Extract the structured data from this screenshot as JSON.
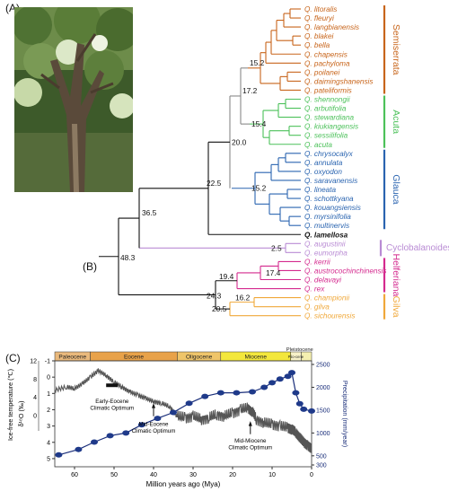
{
  "panels": {
    "a": "(A)",
    "b": "(B)",
    "c": "(C)"
  },
  "tree": {
    "clades": [
      {
        "name": "Semiserrata",
        "color": "#c8651b",
        "species": [
          "Q. litoralis",
          "Q. fleuryi",
          "Q. langbianensis",
          "Q. blakei",
          "Q. bella",
          "Q. chapensis",
          "Q. pachyloma",
          "Q. poilanei",
          "Q. daimingshanensis",
          "Q. pateliformis"
        ]
      },
      {
        "name": "Acuta",
        "color": "#4cc15a",
        "species": [
          "Q. shennongii",
          "Q. arbutifolia",
          "Q. stewardiana",
          "Q. kiukiangensis",
          "Q. sessilifolia",
          "Q. acuta"
        ]
      },
      {
        "name": "Glauca",
        "color": "#2a64b0",
        "species": [
          "Q. chrysocalyx",
          "Q. annulata",
          "Q. oxyodon",
          "Q. saravanensis",
          "Q. lineata",
          "Q. schottkyana",
          "Q. kouangsiensis",
          "Q. myrsinifolia",
          "Q. multinervis"
        ]
      },
      {
        "name": "",
        "color": "#111111",
        "species": [
          "Q. lamellosa"
        ]
      },
      {
        "name": "Cyclobalanoides",
        "color": "#b98bd4",
        "species": [
          "Q. augustinii",
          "Q. eumorpha"
        ]
      },
      {
        "name": "Helferiana",
        "color": "#d42a8e",
        "species": [
          "Q. kerrii",
          "Q. austrocochinchinensis",
          "Q. delavayi",
          "Q. rex"
        ]
      },
      {
        "name": "Gilva",
        "color": "#f0a83a",
        "species": [
          "Q. championii",
          "Q. gilva",
          "Q. sichourensis"
        ]
      }
    ],
    "node_ages": {
      "root": "48.3",
      "n365": "36.5",
      "n225": "22.5",
      "n200": "20.0",
      "n172": "17.2",
      "n152a": "15.2",
      "n154": "15.4",
      "n152b": "15.2",
      "n25": "2.5",
      "n243": "24.3",
      "n194": "19.4",
      "n174": "17.4",
      "n162": "16.2",
      "n205": "20.5"
    }
  },
  "chart_data": {
    "type": "line",
    "epochs": [
      "Paleocene",
      "Eocene",
      "Oligocene",
      "Miocene",
      "Pleistocene",
      "Plio-cene"
    ],
    "epoch_colors": [
      "#e9b97c",
      "#e8a24a",
      "#efc56a",
      "#f3e73c",
      "#f5f0b0",
      "#f7f1c8"
    ],
    "x_ticks": [
      "60",
      "50",
      "40",
      "30",
      "20",
      "10",
      "0"
    ],
    "xlabel": "Million years ago (Mya)",
    "xlim": [
      65,
      0
    ],
    "y_left_ticks": [
      "-1",
      "0",
      "1",
      "2",
      "3",
      "4",
      "5"
    ],
    "y_left_ticks_t": [
      "12",
      "8",
      "4",
      "0"
    ],
    "ylabel_left_a": "Ice-free temperature (℃)",
    "ylabel_left_b": "δ¹⁸O (‰)",
    "ylim_left": [
      -1,
      5.5
    ],
    "y_right_ticks": [
      "2500",
      "2000",
      "1500",
      "1000",
      "500",
      "300"
    ],
    "ylabel_right": "Precipitation (mm/year)",
    "annotations": [
      "Early-Eocene Climatic Optimum",
      "Mid-Eocene Climatic Optimum",
      "Mid-Miocene Climatic Optimum"
    ],
    "series": [
      {
        "name": "d18O",
        "color": "#555555",
        "x": [
          65,
          62,
          60,
          58,
          56,
          54,
          52,
          50,
          48,
          46,
          44,
          42,
          40,
          38,
          36,
          34,
          32,
          30,
          28,
          26,
          24,
          22,
          20,
          18,
          16,
          15,
          14,
          12,
          10,
          8,
          6,
          5,
          4,
          3,
          2,
          1,
          0
        ],
        "y": [
          0.8,
          0.6,
          0.7,
          0.4,
          0.0,
          -0.4,
          -0.1,
          0.3,
          0.6,
          0.9,
          1.1,
          1.3,
          1.5,
          1.6,
          1.8,
          2.4,
          2.5,
          2.4,
          2.6,
          2.5,
          2.3,
          2.4,
          2.2,
          2.0,
          1.9,
          2.1,
          2.6,
          2.8,
          2.9,
          3.0,
          3.1,
          3.2,
          3.4,
          3.7,
          4.0,
          4.2,
          4.4
        ]
      },
      {
        "name": "precipitation",
        "color": "#1a2e7a",
        "x": [
          64,
          59,
          55,
          51,
          47,
          43,
          39,
          35,
          31,
          27,
          23,
          19,
          15,
          12,
          10,
          8,
          6,
          5,
          4,
          3,
          2,
          0
        ],
        "y": [
          520,
          640,
          800,
          940,
          1000,
          1180,
          1320,
          1450,
          1650,
          1800,
          1880,
          1880,
          1900,
          2000,
          2100,
          2180,
          2240,
          2320,
          1880,
          1640,
          1520,
          1480
        ]
      }
    ]
  }
}
